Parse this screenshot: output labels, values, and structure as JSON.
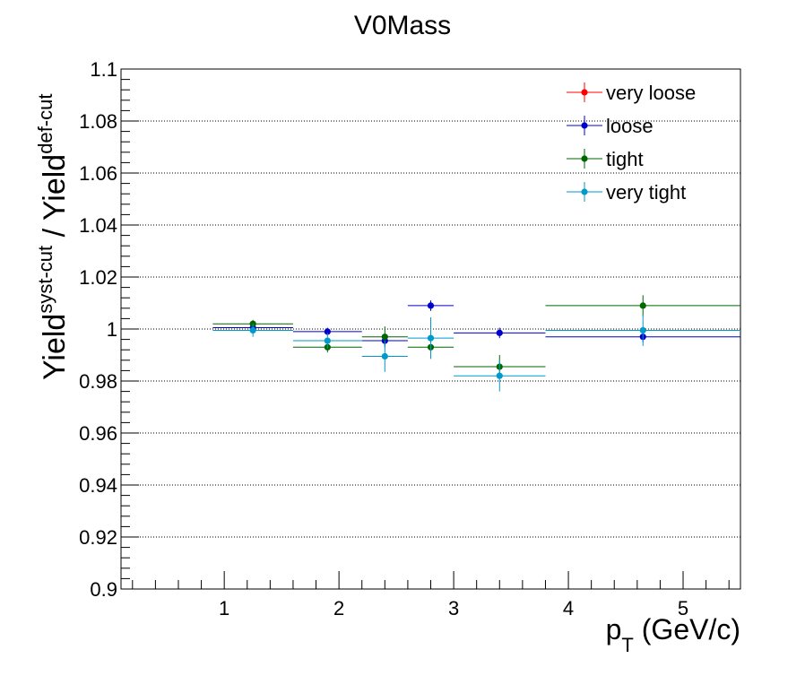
{
  "chart_data": {
    "type": "scatter",
    "title": "V0Mass",
    "xlabel": {
      "main": "p",
      "sub": "T",
      "rest": " (GeV/c)"
    },
    "ylabel": {
      "a": "Yield",
      "a_sup": "syst-cut",
      "b": " / Yield",
      "b_sup": "def-cut"
    },
    "xlim": [
      0.1,
      5.5
    ],
    "ylim": [
      0.9,
      1.1
    ],
    "x_ticks": [
      1,
      2,
      3,
      4,
      5
    ],
    "x_tick_labels": [
      "1",
      "2",
      "3",
      "4",
      "5"
    ],
    "y_ticks": [
      0.9,
      0.92,
      0.94,
      0.96,
      0.98,
      1.0,
      1.02,
      1.04,
      1.06,
      1.08,
      1.1
    ],
    "y_tick_labels": [
      "0.9",
      "0.92",
      "0.94",
      "0.96",
      "0.98",
      "1",
      "1.02",
      "1.04",
      "1.06",
      "1.08",
      "1.1"
    ],
    "grid": "horizontal dotted",
    "legend_position": "top-right",
    "series": [
      {
        "name": "very loose",
        "color": "#ff0000",
        "points": []
      },
      {
        "name": "loose",
        "color": "#0000cc",
        "points": [
          {
            "x": 1.25,
            "xlo": 0.9,
            "xhi": 1.6,
            "y": 1.0005,
            "yerr": 0.001
          },
          {
            "x": 1.9,
            "xlo": 1.6,
            "xhi": 2.2,
            "y": 0.999,
            "yerr": 0.0015
          },
          {
            "x": 2.4,
            "xlo": 2.2,
            "xhi": 2.6,
            "y": 0.9955,
            "yerr": 0.002
          },
          {
            "x": 2.8,
            "xlo": 2.6,
            "xhi": 3.0,
            "y": 1.009,
            "yerr": 0.002
          },
          {
            "x": 3.4,
            "xlo": 3.0,
            "xhi": 3.8,
            "y": 0.9985,
            "yerr": 0.002
          },
          {
            "x": 4.65,
            "xlo": 3.8,
            "xhi": 5.5,
            "y": 0.997,
            "yerr": 0.002
          }
        ]
      },
      {
        "name": "tight",
        "color": "#006600",
        "points": [
          {
            "x": 1.25,
            "xlo": 0.9,
            "xhi": 1.6,
            "y": 1.002,
            "yerr": 0.0015
          },
          {
            "x": 1.9,
            "xlo": 1.6,
            "xhi": 2.2,
            "y": 0.993,
            "yerr": 0.002
          },
          {
            "x": 2.4,
            "xlo": 2.2,
            "xhi": 2.6,
            "y": 0.997,
            "yerr": 0.004
          },
          {
            "x": 2.8,
            "xlo": 2.6,
            "xhi": 3.0,
            "y": 0.993,
            "yerr": 0.0035
          },
          {
            "x": 3.4,
            "xlo": 3.0,
            "xhi": 3.8,
            "y": 0.9855,
            "yerr": 0.0045
          },
          {
            "x": 4.65,
            "xlo": 3.8,
            "xhi": 5.5,
            "y": 1.009,
            "yerr": 0.004
          }
        ]
      },
      {
        "name": "very tight",
        "color": "#0099cc",
        "points": [
          {
            "x": 1.25,
            "xlo": 0.9,
            "xhi": 1.6,
            "y": 0.9995,
            "yerr": 0.0025
          },
          {
            "x": 1.9,
            "xlo": 1.6,
            "xhi": 2.2,
            "y": 0.9955,
            "yerr": 0.003
          },
          {
            "x": 2.4,
            "xlo": 2.2,
            "xhi": 2.6,
            "y": 0.9895,
            "yerr": 0.006
          },
          {
            "x": 2.8,
            "xlo": 2.6,
            "xhi": 3.0,
            "y": 0.9965,
            "yerr": 0.008
          },
          {
            "x": 3.4,
            "xlo": 3.0,
            "xhi": 3.8,
            "y": 0.982,
            "yerr": 0.006
          },
          {
            "x": 4.65,
            "xlo": 3.8,
            "xhi": 5.5,
            "y": 0.9995,
            "yerr": 0.006
          }
        ]
      }
    ]
  }
}
